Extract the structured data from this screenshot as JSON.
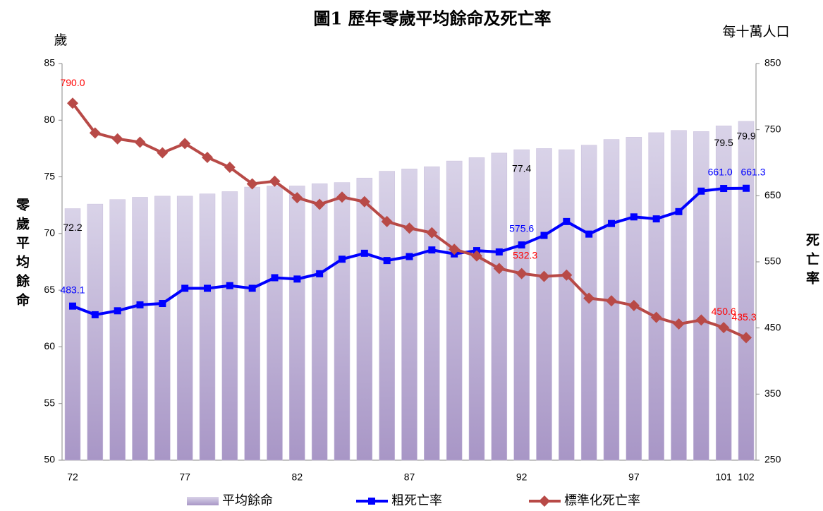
{
  "chart_data": {
    "type": "bar-line",
    "title": "圖1 歷年零歲平均餘命及死亡率",
    "y_label_unit": "歲",
    "y2_label_unit": "每十萬人口",
    "y_label": "零歲平均餘命",
    "y2_label": "死亡率",
    "categories": [
      "72",
      null,
      null,
      null,
      null,
      "77",
      null,
      null,
      null,
      null,
      "82",
      null,
      null,
      null,
      null,
      "87",
      null,
      null,
      null,
      null,
      "92",
      null,
      null,
      null,
      null,
      "97",
      null,
      null,
      null,
      "101",
      "102"
    ],
    "ylim": [
      50,
      85
    ],
    "yticks": [
      50,
      55,
      60,
      65,
      70,
      75,
      80,
      85
    ],
    "y2lim": [
      250,
      850
    ],
    "y2ticks": [
      250,
      350,
      450,
      550,
      650,
      750,
      850
    ],
    "series": [
      {
        "name": "平均餘命",
        "type": "bar",
        "color": "#c8bedc",
        "values": [
          72.2,
          72.6,
          73.0,
          73.2,
          73.3,
          73.3,
          73.5,
          73.7,
          74.1,
          74.2,
          74.2,
          74.4,
          74.5,
          74.9,
          75.5,
          75.7,
          75.9,
          76.4,
          76.7,
          77.1,
          77.4,
          77.5,
          77.4,
          77.8,
          78.3,
          78.5,
          78.9,
          79.1,
          79.0,
          79.5,
          79.9
        ],
        "value_labels": [
          "72.2",
          null,
          null,
          null,
          null,
          null,
          null,
          null,
          null,
          null,
          null,
          null,
          null,
          null,
          null,
          null,
          null,
          null,
          null,
          null,
          "77.4",
          null,
          null,
          null,
          null,
          null,
          null,
          null,
          null,
          "79.5",
          "79.9"
        ],
        "label_color": "#000000"
      },
      {
        "name": "粗死亡率",
        "type": "line",
        "axis": "y2",
        "color": "#0000ff",
        "marker": "square",
        "values": [
          483.1,
          470,
          476,
          485,
          487,
          510,
          510,
          514,
          510,
          526,
          524,
          532,
          554,
          563,
          552,
          558,
          568,
          562,
          567,
          565,
          575.6,
          590,
          611,
          592,
          608,
          618,
          615,
          626,
          657,
          661.0,
          661.3
        ],
        "value_labels": [
          "483.1",
          null,
          null,
          null,
          null,
          null,
          null,
          null,
          null,
          null,
          null,
          null,
          null,
          null,
          null,
          null,
          null,
          null,
          null,
          null,
          "575.6",
          null,
          null,
          null,
          null,
          null,
          null,
          null,
          null,
          "661.0",
          "661.3"
        ],
        "label_color": "#0000ff"
      },
      {
        "name": "標準化死亡率",
        "type": "line",
        "axis": "y2",
        "color": "#b84a47",
        "marker": "diamond",
        "values": [
          790.0,
          745,
          736,
          731,
          715,
          729,
          708,
          693,
          668,
          672,
          647,
          637,
          648,
          641,
          611,
          601,
          594,
          569,
          559,
          540,
          532.3,
          528,
          530,
          495,
          491,
          484,
          466,
          456,
          462,
          450.6,
          435.3
        ],
        "value_labels": [
          "790.0",
          null,
          null,
          null,
          null,
          null,
          null,
          null,
          null,
          null,
          null,
          null,
          null,
          null,
          null,
          null,
          null,
          null,
          null,
          null,
          "532.3",
          null,
          null,
          null,
          null,
          null,
          null,
          null,
          null,
          "450.6",
          "435.3"
        ],
        "label_color": "#ff0000"
      }
    ]
  }
}
